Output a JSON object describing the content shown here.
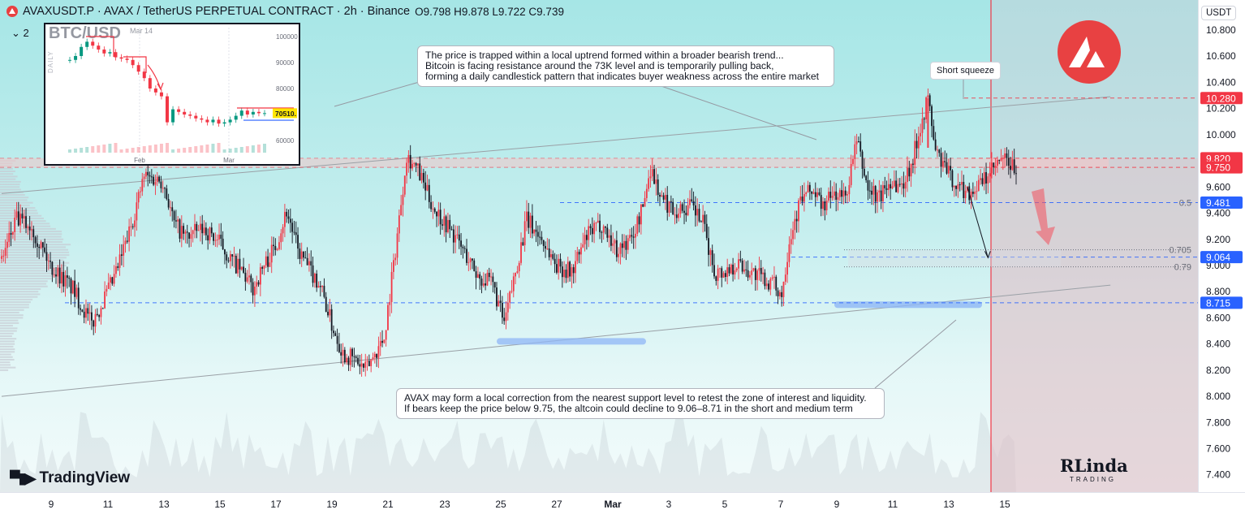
{
  "header": {
    "symbol": "AVAXUSDT.P · AVAX / TetherUS PERPETUAL CONTRACT · 2h · Binance",
    "ohlc": "O9.798 H9.878 L9.722 C9.739",
    "indicator_toggle": "⌄ 2"
  },
  "price_axis": {
    "currency": "USDT"
  },
  "colors": {
    "up": "#f23645",
    "down": "#131722",
    "line_up": "#f23645",
    "accent_blue": "#2962ff",
    "brand": "#e84142"
  },
  "inset": {
    "title": "BTC/USD",
    "subtitle": "Mar 14",
    "timeframe": "DAILY",
    "price_labels": [
      "100000",
      "90000",
      "80000",
      "70000",
      "60000"
    ],
    "time_labels": [
      "Feb",
      "Mar"
    ],
    "current_price": "70510.",
    "chart_data": {
      "type": "candlestick",
      "ylim": [
        55000,
        102000
      ],
      "closes": [
        91000,
        92500,
        96000,
        98000,
        96500,
        95000,
        93500,
        94000,
        92000,
        91500,
        91000,
        89000,
        86500,
        84000,
        80000,
        78500,
        77000,
        67000,
        72000,
        71000,
        70000,
        69500,
        68500,
        68000,
        67000,
        68000,
        66500,
        67000,
        68000,
        69500,
        71500,
        70000,
        71000,
        70500,
        70510
      ],
      "resistance": 72500,
      "support": 67800
    }
  },
  "annotations": {
    "note_top_line1": "The price is trapped within a local uptrend formed within a broader bearish trend...",
    "note_top_line2": "Bitcoin is facing resistance around the 73K level and is temporarily pulling back,",
    "note_top_line3": "forming a daily candlestick pattern that indicates buyer weakness across the entire market",
    "note_bottom_line1": "AVAX may form a local correction from the nearest support level to retest the zone of interest and liquidity.",
    "note_bottom_line2": "If bears keep the price below 9.75, the altcoin could decline to 9.06–8.71 in the short and medium term",
    "short_squeeze": "Short squeeze",
    "fib_05": "0.5",
    "fib_0705": "0.705",
    "fib_079": "0.79"
  },
  "chart_data": {
    "type": "candlestick",
    "title": "AVAXUSDT.P · AVAX / TetherUS PERPETUAL CONTRACT · 2h · Binance",
    "ylim": [
      7.3,
      10.9
    ],
    "y_ticks": [
      "10.800",
      "10.600",
      "10.400",
      "10.200",
      "10.000",
      "9.600",
      "9.400",
      "9.200",
      "9.000",
      "8.800",
      "8.600",
      "8.400",
      "8.200",
      "8.000",
      "7.800",
      "7.600",
      "7.400"
    ],
    "x_ticks": [
      "9",
      "11",
      "13",
      "15",
      "17",
      "19",
      "21",
      "23",
      "25",
      "27",
      "Mar",
      "3",
      "5",
      "7",
      "9",
      "11",
      "13",
      "15"
    ],
    "path": [
      [
        0,
        9.05
      ],
      [
        8,
        9.35
      ],
      [
        16,
        9.3
      ],
      [
        26,
        9.0
      ],
      [
        38,
        8.82
      ],
      [
        48,
        8.55
      ],
      [
        60,
        8.9
      ],
      [
        68,
        9.25
      ],
      [
        76,
        9.68
      ],
      [
        86,
        9.65
      ],
      [
        92,
        9.32
      ],
      [
        98,
        9.22
      ],
      [
        108,
        9.28
      ],
      [
        116,
        9.18
      ],
      [
        122,
        9.05
      ],
      [
        128,
        8.95
      ],
      [
        134,
        8.82
      ],
      [
        140,
        9.0
      ],
      [
        146,
        9.15
      ],
      [
        152,
        9.42
      ],
      [
        158,
        9.12
      ],
      [
        164,
        8.97
      ],
      [
        170,
        8.85
      ],
      [
        176,
        8.55
      ],
      [
        182,
        8.33
      ],
      [
        188,
        8.28
      ],
      [
        194,
        8.2
      ],
      [
        198,
        8.3
      ],
      [
        204,
        8.45
      ],
      [
        210,
        9.12
      ],
      [
        216,
        9.85
      ],
      [
        222,
        9.72
      ],
      [
        230,
        9.45
      ],
      [
        238,
        9.3
      ],
      [
        246,
        9.12
      ],
      [
        254,
        8.92
      ],
      [
        262,
        8.85
      ],
      [
        268,
        8.55
      ],
      [
        274,
        8.95
      ],
      [
        280,
        9.35
      ],
      [
        288,
        9.2
      ],
      [
        296,
        9.0
      ],
      [
        304,
        8.95
      ],
      [
        312,
        9.22
      ],
      [
        320,
        9.32
      ],
      [
        328,
        9.12
      ],
      [
        336,
        9.2
      ],
      [
        342,
        9.45
      ],
      [
        346,
        9.75
      ],
      [
        352,
        9.5
      ],
      [
        360,
        9.42
      ],
      [
        368,
        9.45
      ],
      [
        374,
        9.32
      ],
      [
        380,
        8.95
      ],
      [
        386,
        8.95
      ],
      [
        392,
        9.02
      ],
      [
        400,
        8.95
      ],
      [
        406,
        8.9
      ],
      [
        412,
        8.85
      ],
      [
        416,
        8.78
      ],
      [
        420,
        9.2
      ],
      [
        426,
        9.5
      ],
      [
        432,
        9.58
      ],
      [
        438,
        9.45
      ],
      [
        444,
        9.55
      ],
      [
        450,
        9.52
      ],
      [
        456,
        9.95
      ],
      [
        462,
        9.58
      ],
      [
        468,
        9.52
      ],
      [
        474,
        9.65
      ],
      [
        480,
        9.6
      ],
      [
        486,
        9.82
      ],
      [
        490,
        10.08
      ],
      [
        494,
        10.28
      ],
      [
        498,
        9.88
      ],
      [
        504,
        9.72
      ],
      [
        510,
        9.6
      ],
      [
        516,
        9.56
      ],
      [
        522,
        9.62
      ],
      [
        528,
        9.72
      ],
      [
        534,
        9.81
      ],
      [
        538,
        9.76
      ],
      [
        541,
        9.74
      ]
    ],
    "series": [
      {
        "name": "AVAXUSDT.P",
        "last": 9.739
      }
    ],
    "levels": [
      {
        "value": 10.28,
        "label": "10.280",
        "color": "#f23645",
        "style": "dashed"
      },
      {
        "value": 9.82,
        "label": "9.820",
        "color": "#f23645",
        "style": "dashed"
      },
      {
        "value": 9.75,
        "label": "9.750",
        "color": "#f23645",
        "style": "dashed"
      },
      {
        "value": 9.481,
        "label": "9.481",
        "color": "#2962ff",
        "style": "dashed"
      },
      {
        "value": 9.064,
        "label": "9.064",
        "color": "#2962ff",
        "style": "dashed"
      },
      {
        "value": 8.715,
        "label": "8.715",
        "color": "#2962ff",
        "style": "dashed"
      }
    ],
    "fib_levels": [
      {
        "value": 9.481,
        "label": "0.5"
      },
      {
        "value": 9.12,
        "label": "0.705"
      },
      {
        "value": 8.99,
        "label": "0.79"
      }
    ],
    "resistance_zone": [
      9.75,
      9.82
    ],
    "upper_channel": [
      [
        0,
        9.55
      ],
      [
        548,
        10.26
      ]
    ],
    "lower_channel": [
      [
        0,
        8.0
      ],
      [
        548,
        8.8
      ]
    ],
    "target_arrow": [
      [
        515,
        9.6
      ],
      [
        526,
        9.06
      ]
    ]
  }
}
